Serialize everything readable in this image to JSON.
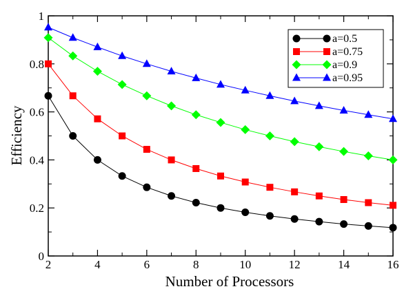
{
  "chart_data": {
    "type": "line",
    "title": "",
    "xlabel": "Number of Processors",
    "ylabel": "Efficiency",
    "x": [
      2,
      3,
      4,
      5,
      6,
      7,
      8,
      9,
      10,
      11,
      12,
      13,
      14,
      15,
      16
    ],
    "xlim": [
      2,
      16
    ],
    "ylim": [
      0,
      1
    ],
    "xticks": [
      2,
      4,
      6,
      8,
      10,
      12,
      14,
      16
    ],
    "yticks": [
      0,
      0.2,
      0.4,
      0.6,
      0.8,
      1
    ],
    "xtick_labels": [
      "2",
      "4",
      "6",
      "8",
      "10",
      "12",
      "14",
      "16"
    ],
    "ytick_labels": [
      "0",
      "0.2",
      "0.4",
      "0.6",
      "0.8",
      "1"
    ],
    "grid": false,
    "legend_position": "top-right",
    "series": [
      {
        "name": "a=0.5",
        "color": "#000000",
        "marker": "circle",
        "values": [
          0.667,
          0.5,
          0.4,
          0.333,
          0.286,
          0.25,
          0.222,
          0.2,
          0.182,
          0.167,
          0.154,
          0.143,
          0.133,
          0.125,
          0.118
        ]
      },
      {
        "name": "a=0.75",
        "color": "#ff0000",
        "marker": "square",
        "values": [
          0.8,
          0.667,
          0.571,
          0.5,
          0.444,
          0.4,
          0.364,
          0.333,
          0.308,
          0.286,
          0.267,
          0.25,
          0.235,
          0.222,
          0.211
        ]
      },
      {
        "name": "a=0.9",
        "color": "#00ff00",
        "marker": "diamond",
        "values": [
          0.909,
          0.833,
          0.769,
          0.714,
          0.667,
          0.625,
          0.588,
          0.556,
          0.526,
          0.5,
          0.476,
          0.455,
          0.435,
          0.417,
          0.4
        ]
      },
      {
        "name": "a=0.95",
        "color": "#0000ff",
        "marker": "triangle",
        "values": [
          0.952,
          0.909,
          0.87,
          0.833,
          0.8,
          0.769,
          0.741,
          0.714,
          0.69,
          0.667,
          0.645,
          0.625,
          0.606,
          0.588,
          0.571
        ]
      }
    ]
  }
}
